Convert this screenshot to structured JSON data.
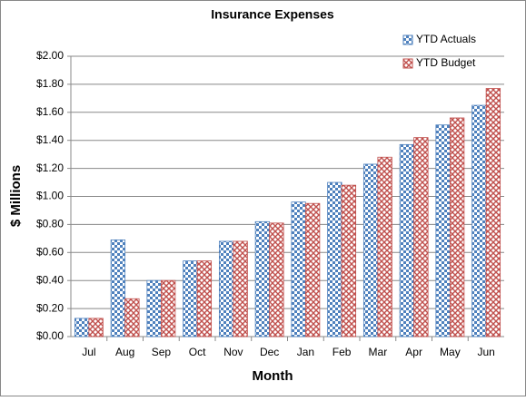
{
  "chart_data": {
    "type": "bar",
    "title": "Insurance Expenses",
    "x_label": "Month",
    "y_label": "$ Millions",
    "categories": [
      "Jul",
      "Aug",
      "Sep",
      "Oct",
      "Nov",
      "Dec",
      "Jan",
      "Feb",
      "Mar",
      "Apr",
      "May",
      "Jun"
    ],
    "series": [
      {
        "name": "YTD Actuals",
        "color": "#4f81bd",
        "values": [
          0.13,
          0.69,
          0.4,
          0.54,
          0.68,
          0.82,
          0.96,
          1.1,
          1.23,
          1.37,
          1.51,
          1.65
        ]
      },
      {
        "name": "YTD Budget",
        "color": "#c0504d",
        "values": [
          0.13,
          0.27,
          0.4,
          0.54,
          0.68,
          0.81,
          0.95,
          1.08,
          1.28,
          1.42,
          1.56,
          1.77
        ]
      }
    ],
    "ylim": [
      0,
      2
    ],
    "yticks": [
      {
        "value": 0,
        "label": "$0.00"
      },
      {
        "value": 0.2,
        "label": "$0.20"
      },
      {
        "value": 0.4,
        "label": "$0.40"
      },
      {
        "value": 0.6,
        "label": "$0.60"
      },
      {
        "value": 0.8,
        "label": "$0.80"
      },
      {
        "value": 1.0,
        "label": "$1.00"
      },
      {
        "value": 1.2,
        "label": "$1.20"
      },
      {
        "value": 1.4,
        "label": "$1.40"
      },
      {
        "value": 1.6,
        "label": "$1.60"
      },
      {
        "value": 1.8,
        "label": "$1.80"
      },
      {
        "value": 2.0,
        "label": "$2.00"
      }
    ],
    "grid": true,
    "legend": "top-right"
  }
}
